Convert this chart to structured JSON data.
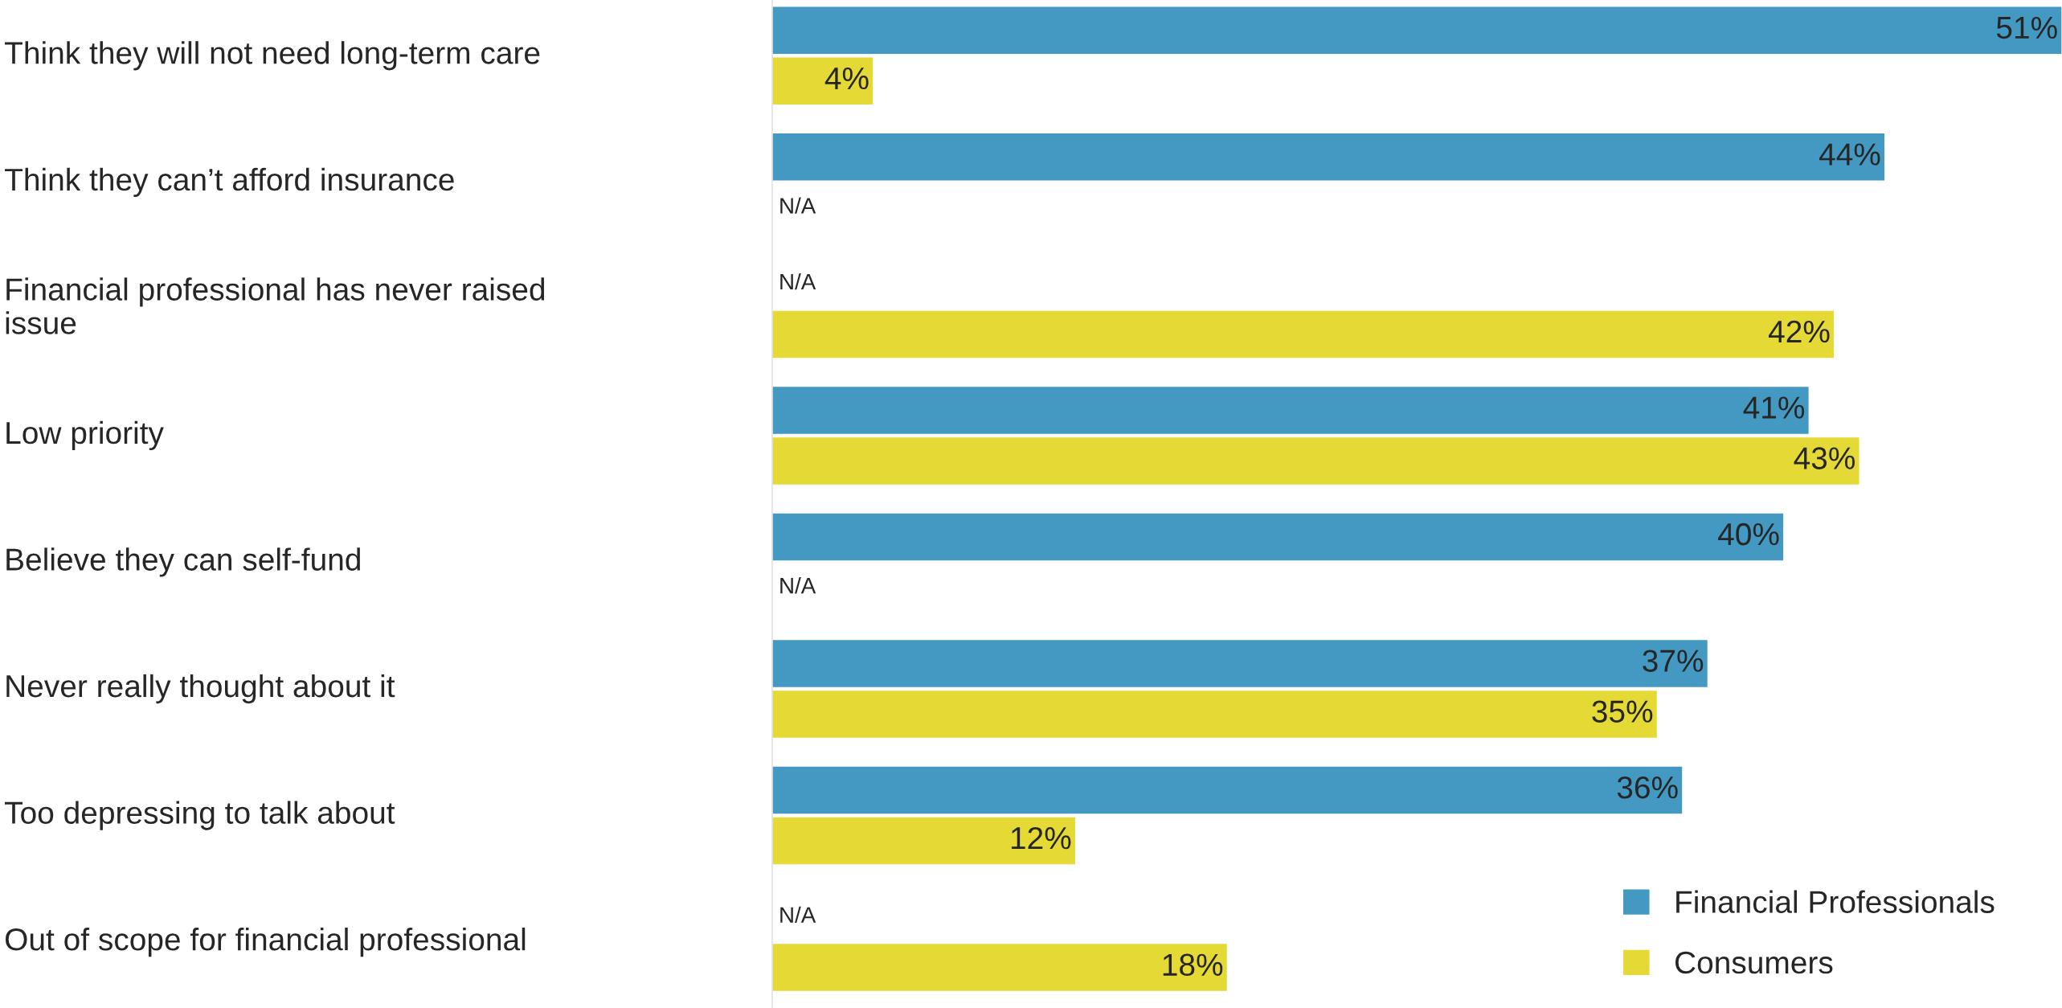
{
  "chart_data": {
    "type": "bar",
    "orientation": "horizontal",
    "categories": [
      "Think they will not need long-term care",
      "Think they can’t afford insurance",
      "Financial professional has never raised\nissue",
      "Low priority",
      "Believe they can self-fund",
      "Never really thought about it",
      "Too depressing to talk about",
      "Out of scope for financial professional"
    ],
    "series": [
      {
        "name": "Financial Professionals",
        "color": "#4399c1",
        "values": [
          51,
          44,
          null,
          41,
          40,
          37,
          36,
          null
        ],
        "value_labels": [
          "51%",
          "44%",
          "N/A",
          "41%",
          "40%",
          "37%",
          "36%",
          "N/A"
        ]
      },
      {
        "name": "Consumers",
        "color": "#e5d935",
        "values": [
          4,
          null,
          42,
          43,
          null,
          35,
          12,
          18
        ],
        "value_labels": [
          "4%",
          "N/A",
          "42%",
          "43%",
          "N/A",
          "35%",
          "12%",
          "18%"
        ]
      }
    ],
    "legend": "bottom right"
  }
}
